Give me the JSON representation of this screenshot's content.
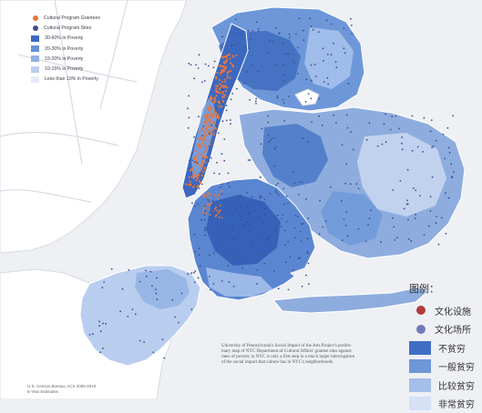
{
  "legend_en": {
    "items": [
      {
        "label": "Cultural Program Grantees",
        "kind": "dot",
        "color": "#e8743b"
      },
      {
        "label": "Cultural Program Sites",
        "kind": "dot",
        "color": "#3d4e8c"
      },
      {
        "label": "30-60% in Poverty",
        "kind": "swatch",
        "color": "#3d68bf"
      },
      {
        "label": "20-30% in Poverty",
        "kind": "swatch",
        "color": "#6690d6"
      },
      {
        "label": "15-20% in Poverty",
        "kind": "swatch",
        "color": "#92b1e3"
      },
      {
        "label": "10-15% in Poverty",
        "kind": "swatch",
        "color": "#bccfee"
      },
      {
        "label": "Less than 10% in Poverty",
        "kind": "swatch",
        "color": "#e4ebf7"
      }
    ]
  },
  "legend_cn": {
    "title": "图例：",
    "items": [
      {
        "label": "文化设施",
        "kind": "dot",
        "color": "#b23a3a"
      },
      {
        "label": "文化场所",
        "kind": "dot",
        "color": "#6f7bb8"
      },
      {
        "label": "不贫穷",
        "kind": "swatch",
        "color": "#3f6fc2"
      },
      {
        "label": "一般贫穷",
        "kind": "swatch",
        "color": "#6e97d8"
      },
      {
        "label": "比较贫穷",
        "kind": "swatch",
        "color": "#a5bfea"
      },
      {
        "label": "非常贫穷",
        "kind": "swatch",
        "color": "#d5e1f4"
      }
    ]
  },
  "source": {
    "line1": "U.S. Census Bureau, ACS 2006-2010",
    "line2": "5-Year Estimates"
  },
  "caption": {
    "lines": [
      "University of Pennsylvania's Social Impact of the Arts Project's prelim-",
      "inary map of NYC Department of Cultural Affairs' grantee sites against",
      "rates of poverty in NYC is only a first step in a much larger interrogation",
      "of the social impact that culture has in NYC's neighborhoods."
    ]
  },
  "colors": {
    "water": "#eef0f4",
    "land": "#ffffff",
    "grantee": "#e8743b",
    "site": "#3d4e8c"
  }
}
